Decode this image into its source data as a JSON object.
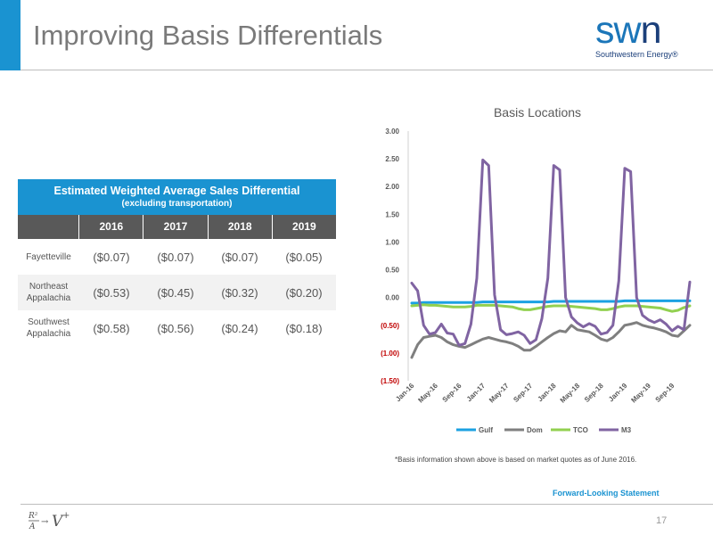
{
  "slide": {
    "title": "Improving Basis Differentials",
    "logo_word_a": "sw",
    "logo_word_b": "n",
    "logo_tagline": "Southwestern Energy®",
    "footnote": "*Basis information shown above is based on market quotes as of June 2016.",
    "forward_looking": "Forward-Looking Statement",
    "page_number": "17",
    "accent_color": "#1a93d1"
  },
  "table": {
    "title": "Estimated Weighted Average Sales Differential",
    "subtitle": "(excluding transportation)",
    "years": [
      "2016",
      "2017",
      "2018",
      "2019"
    ],
    "rows": [
      {
        "label": "Fayetteville",
        "values": [
          "($0.07)",
          "($0.07)",
          "($0.07)",
          "($0.05)"
        ]
      },
      {
        "label": "Northeast Appalachia",
        "values": [
          "($0.53)",
          "($0.45)",
          "($0.32)",
          "($0.20)"
        ]
      },
      {
        "label": "Southwest Appalachia",
        "values": [
          "($0.58)",
          "($0.56)",
          "($0.24)",
          "($0.18)"
        ]
      }
    ]
  },
  "chart_data": {
    "type": "line",
    "title": "Basis Locations",
    "ylim": [
      -1.5,
      3.0
    ],
    "yticks": [
      3.0,
      2.5,
      2.0,
      1.5,
      1.0,
      0.5,
      0.0,
      -0.5,
      -1.0,
      -1.5
    ],
    "ytick_labels": [
      "3.00",
      "2.50",
      "2.00",
      "1.50",
      "1.00",
      "0.50",
      "0.00",
      "(0.50)",
      "(1.00)",
      "(1.50)"
    ],
    "xtick_labels": [
      "Jan-16",
      "May-16",
      "Sep-16",
      "Jan-17",
      "May-17",
      "Sep-17",
      "Jan-18",
      "May-18",
      "Sep-18",
      "Jan-19",
      "May-19",
      "Sep-19"
    ],
    "x": [
      "Jan-16",
      "Feb-16",
      "Mar-16",
      "Apr-16",
      "May-16",
      "Jun-16",
      "Jul-16",
      "Aug-16",
      "Sep-16",
      "Oct-16",
      "Nov-16",
      "Dec-16",
      "Jan-17",
      "Feb-17",
      "Mar-17",
      "Apr-17",
      "May-17",
      "Jun-17",
      "Jul-17",
      "Aug-17",
      "Sep-17",
      "Oct-17",
      "Nov-17",
      "Dec-17",
      "Jan-18",
      "Feb-18",
      "Mar-18",
      "Apr-18",
      "May-18",
      "Jun-18",
      "Jul-18",
      "Aug-18",
      "Sep-18",
      "Oct-18",
      "Nov-18",
      "Dec-18",
      "Jan-19",
      "Feb-19",
      "Mar-19",
      "Apr-19",
      "May-19",
      "Jun-19",
      "Jul-19",
      "Aug-19",
      "Sep-19",
      "Oct-19",
      "Nov-19",
      "Dec-19"
    ],
    "grid": false,
    "legend_position": "bottom",
    "series": [
      {
        "name": "Gulf",
        "color": "#1ba1e2",
        "values": [
          -0.1,
          -0.1,
          -0.09,
          -0.09,
          -0.09,
          -0.09,
          -0.09,
          -0.09,
          -0.09,
          -0.09,
          -0.09,
          -0.09,
          -0.08,
          -0.08,
          -0.08,
          -0.08,
          -0.08,
          -0.08,
          -0.08,
          -0.08,
          -0.08,
          -0.08,
          -0.08,
          -0.08,
          -0.07,
          -0.07,
          -0.07,
          -0.07,
          -0.07,
          -0.07,
          -0.07,
          -0.07,
          -0.07,
          -0.07,
          -0.07,
          -0.07,
          -0.06,
          -0.06,
          -0.06,
          -0.06,
          -0.06,
          -0.06,
          -0.06,
          -0.06,
          -0.06,
          -0.06,
          -0.06,
          -0.06
        ]
      },
      {
        "name": "Dom",
        "color": "#7f7f7f",
        "values": [
          -1.08,
          -0.85,
          -0.72,
          -0.7,
          -0.68,
          -0.72,
          -0.8,
          -0.85,
          -0.88,
          -0.9,
          -0.85,
          -0.8,
          -0.75,
          -0.72,
          -0.75,
          -0.78,
          -0.8,
          -0.83,
          -0.88,
          -0.95,
          -0.95,
          -0.88,
          -0.8,
          -0.72,
          -0.65,
          -0.6,
          -0.62,
          -0.5,
          -0.58,
          -0.6,
          -0.62,
          -0.68,
          -0.75,
          -0.78,
          -0.72,
          -0.62,
          -0.5,
          -0.48,
          -0.45,
          -0.5,
          -0.53,
          -0.55,
          -0.58,
          -0.62,
          -0.68,
          -0.7,
          -0.6,
          -0.5
        ]
      },
      {
        "name": "TCO",
        "color": "#92d050",
        "values": [
          -0.15,
          -0.14,
          -0.13,
          -0.14,
          -0.14,
          -0.15,
          -0.16,
          -0.17,
          -0.17,
          -0.17,
          -0.16,
          -0.14,
          -0.14,
          -0.14,
          -0.14,
          -0.15,
          -0.16,
          -0.17,
          -0.2,
          -0.22,
          -0.22,
          -0.2,
          -0.18,
          -0.16,
          -0.15,
          -0.15,
          -0.15,
          -0.16,
          -0.17,
          -0.18,
          -0.19,
          -0.2,
          -0.22,
          -0.22,
          -0.2,
          -0.17,
          -0.15,
          -0.15,
          -0.15,
          -0.16,
          -0.17,
          -0.18,
          -0.19,
          -0.22,
          -0.25,
          -0.23,
          -0.18,
          -0.15
        ]
      },
      {
        "name": "M3",
        "color": "#8064a2",
        "values": [
          0.26,
          0.12,
          -0.5,
          -0.66,
          -0.63,
          -0.48,
          -0.64,
          -0.66,
          -0.86,
          -0.83,
          -0.48,
          0.35,
          2.48,
          2.38,
          0.05,
          -0.58,
          -0.67,
          -0.65,
          -0.62,
          -0.68,
          -0.83,
          -0.76,
          -0.38,
          0.35,
          2.38,
          2.3,
          0.0,
          -0.35,
          -0.46,
          -0.53,
          -0.47,
          -0.52,
          -0.66,
          -0.63,
          -0.5,
          0.3,
          2.33,
          2.27,
          0.0,
          -0.32,
          -0.4,
          -0.45,
          -0.4,
          -0.48,
          -0.6,
          -0.52,
          -0.58,
          0.28
        ]
      }
    ]
  }
}
